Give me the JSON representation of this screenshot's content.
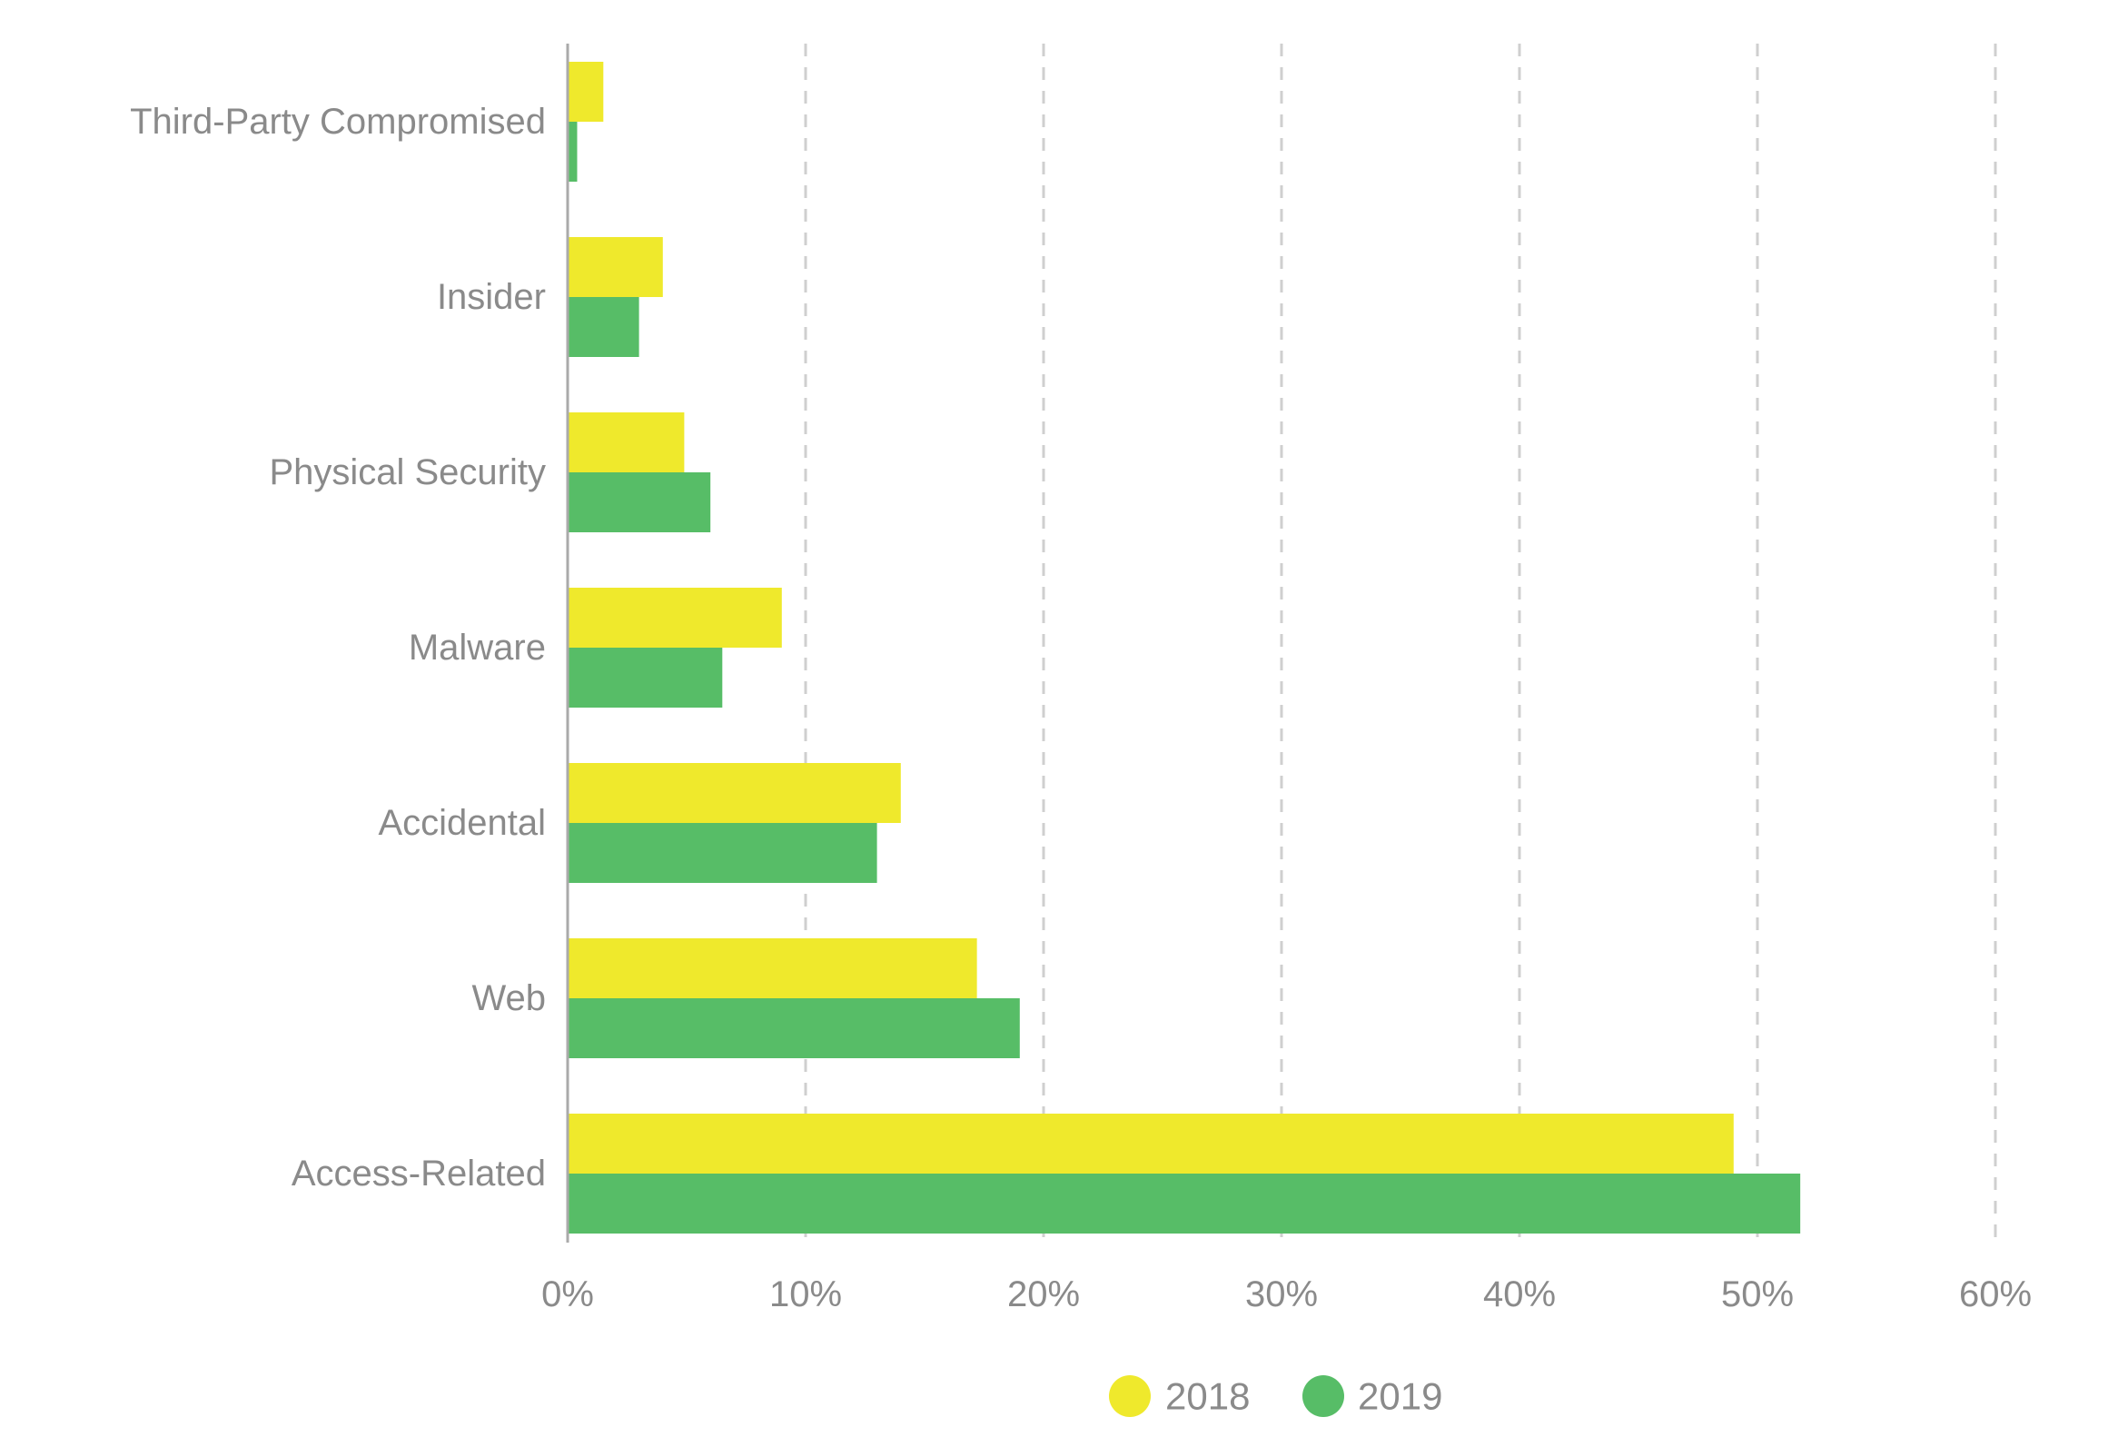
{
  "chart_data": {
    "type": "bar",
    "orientation": "horizontal",
    "categories": [
      "Third-Party Compromised",
      "Insider",
      "Physical Security",
      "Malware",
      "Accidental",
      "Web",
      "Access-Related"
    ],
    "series": [
      {
        "name": "2018",
        "color": "#efe92c",
        "values": [
          1.5,
          4,
          4.9,
          9,
          14,
          17.2,
          49
        ]
      },
      {
        "name": "2019",
        "color": "#57bd67",
        "values": [
          0.4,
          3,
          6,
          6.5,
          13,
          19,
          51.8
        ]
      }
    ],
    "xlim": [
      0,
      60
    ],
    "xticks": [
      0,
      10,
      20,
      30,
      40,
      50,
      60
    ],
    "xtick_labels": [
      "0%",
      "10%",
      "20%",
      "30%",
      "40%",
      "50%",
      "60%"
    ],
    "grid": "vertical-dashed",
    "legend_position": "bottom-center",
    "title": "",
    "xlabel": "",
    "ylabel": ""
  }
}
